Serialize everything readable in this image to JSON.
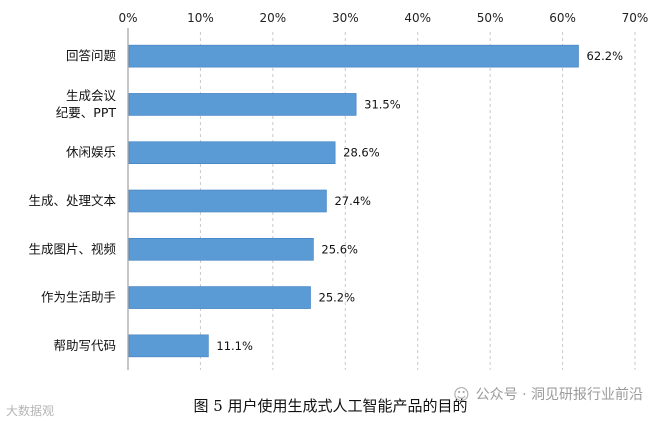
{
  "chart_data": {
    "type": "bar",
    "orientation": "horizontal",
    "categories": [
      "回答问题",
      "生成会议\n纪要、PPT",
      "休闲娱乐",
      "生成、处理文本",
      "生成图片、视频",
      "作为生活助手",
      "帮助写代码"
    ],
    "values": [
      62.2,
      31.5,
      28.6,
      27.4,
      25.6,
      25.2,
      11.1
    ],
    "value_labels": [
      "62.2%",
      "31.5%",
      "28.6%",
      "27.4%",
      "25.6%",
      "25.2%",
      "11.1%"
    ],
    "x_ticks": [
      "0%",
      "10%",
      "20%",
      "30%",
      "40%",
      "50%",
      "60%",
      "70%"
    ],
    "xlim": [
      0,
      70
    ],
    "x_axis_position": "top",
    "grid": "vertical dashed",
    "bar_color": "#5b9bd5"
  },
  "caption": "图 5 用户使用生成式人工智能产品的目的",
  "watermark_right": "公众号 · 洞见研报行业前沿",
  "watermark_left": "大数据观"
}
